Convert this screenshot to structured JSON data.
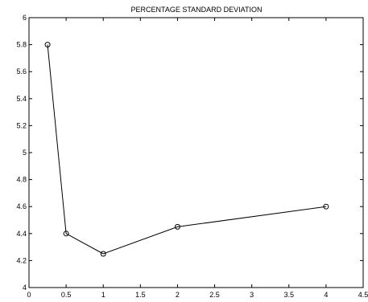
{
  "chart_data": {
    "type": "line",
    "title": "PERCENTAGE STANDARD DEVIATION",
    "xlabel": "",
    "ylabel": "",
    "xlim": [
      0,
      4.5
    ],
    "ylim": [
      4,
      6
    ],
    "grid": false,
    "x_ticks": [
      0,
      0.5,
      1,
      1.5,
      2,
      2.5,
      3,
      3.5,
      4,
      4.5
    ],
    "x_tick_labels": [
      "0",
      "0.5",
      "1",
      "1.5",
      "2",
      "2.5",
      "3",
      "3.5",
      "4",
      "4.5"
    ],
    "y_ticks": [
      4,
      4.2,
      4.4,
      4.6,
      4.8,
      5,
      5.2,
      5.4,
      5.6,
      5.8,
      6
    ],
    "y_tick_labels": [
      "4",
      "4.2",
      "4.4",
      "4.6",
      "4.8",
      "5",
      "5.2",
      "5.4",
      "5.6",
      "5.8",
      "6"
    ],
    "series": [
      {
        "x": [
          0.25,
          0.5,
          1,
          2,
          4
        ],
        "y": [
          5.8,
          4.4,
          4.25,
          4.45,
          4.6
        ],
        "marker": "circle",
        "color": "#000000"
      }
    ]
  }
}
